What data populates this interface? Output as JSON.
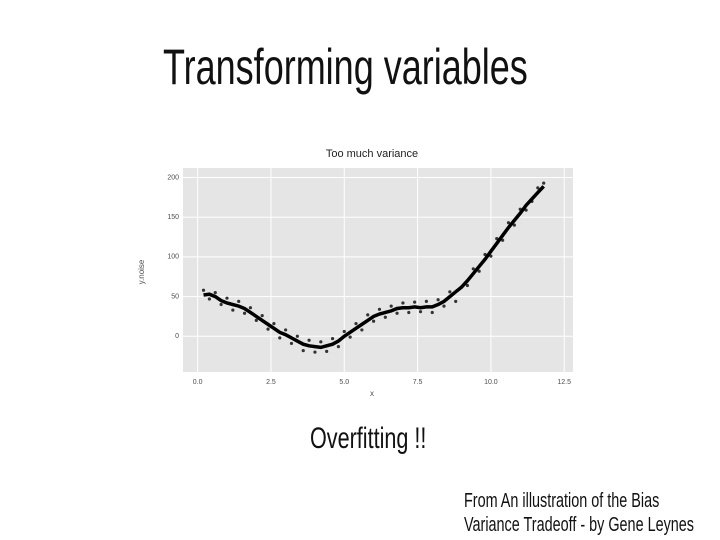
{
  "slide": {
    "title": "Transforming variables",
    "caption": "Overfitting !!",
    "source": [
      "From An illustration of the Bias",
      "Variance Tradeoff - by Gene Leynes"
    ]
  },
  "chart_data": {
    "type": "scatter",
    "title": "Too much variance",
    "x_label": "x",
    "y_label": "y.noise",
    "xlim": [
      -0.5,
      12.8
    ],
    "ylim": [
      -45,
      212
    ],
    "xticks": [
      {
        "value": 0,
        "label": "0.0"
      },
      {
        "value": 2.5,
        "label": "2.5"
      },
      {
        "value": 5,
        "label": "5.0"
      },
      {
        "value": 7.5,
        "label": "7.5"
      },
      {
        "value": 10,
        "label": "10.0"
      },
      {
        "value": 12.5,
        "label": "12.5"
      }
    ],
    "yticks": [
      0,
      50,
      100,
      150,
      200
    ],
    "grid": true,
    "background": "#e5e5e5",
    "x": [
      0.2,
      0.4,
      0.6,
      0.8,
      1.0,
      1.2,
      1.4,
      1.6,
      1.8,
      2.0,
      2.2,
      2.4,
      2.6,
      2.8,
      3.0,
      3.2,
      3.4,
      3.6,
      3.8,
      4.0,
      4.2,
      4.4,
      4.6,
      4.8,
      5.0,
      5.2,
      5.4,
      5.6,
      5.8,
      6.0,
      6.2,
      6.4,
      6.6,
      6.8,
      7.0,
      7.2,
      7.4,
      7.6,
      7.8,
      8.0,
      8.2,
      8.4,
      8.6,
      8.8,
      9.0,
      9.2,
      9.4,
      9.6,
      9.8,
      10.0,
      10.2,
      10.4,
      10.6,
      10.8,
      11.0,
      11.2,
      11.4,
      11.6,
      11.8
    ],
    "series": [
      {
        "mode": "markers",
        "color": "#333333",
        "values": [
          58,
          47,
          55,
          40,
          48,
          33,
          44,
          29,
          36,
          20,
          26,
          9,
          16,
          -2,
          8,
          -9,
          0,
          -18,
          -5,
          -20,
          -7,
          -19,
          -3,
          -13,
          6,
          -1,
          16,
          8,
          27,
          19,
          34,
          24,
          38,
          29,
          42,
          30,
          43,
          31,
          44,
          30,
          46,
          38,
          56,
          44,
          62,
          64,
          85,
          82,
          103,
          101,
          123,
          121,
          143,
          140,
          160,
          159,
          170,
          187,
          193
        ]
      },
      {
        "mode": "line",
        "color": "#000000",
        "values": [
          52,
          53,
          50,
          45,
          42,
          40,
          38,
          35,
          30,
          25,
          20,
          15,
          10,
          5,
          2,
          -2,
          -6,
          -10,
          -12,
          -13,
          -14,
          -12,
          -10,
          -6,
          0,
          5,
          10,
          15,
          20,
          25,
          28,
          30,
          32,
          35,
          36,
          36,
          37,
          36,
          37,
          37,
          40,
          44,
          50,
          56,
          62,
          70,
          79,
          88,
          97,
          107,
          117,
          127,
          137,
          146,
          155,
          165,
          173,
          181,
          189
        ]
      }
    ]
  }
}
